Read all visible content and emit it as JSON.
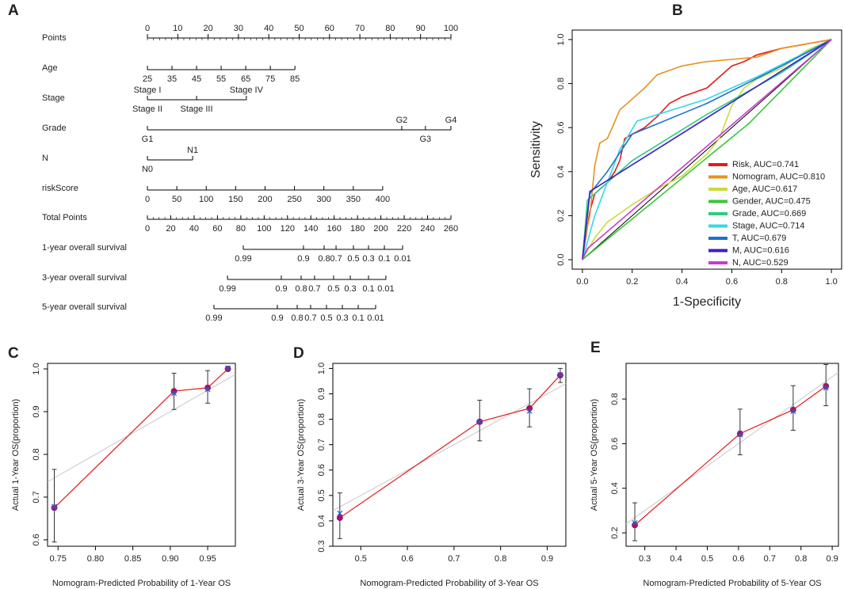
{
  "chart_data": [
    {
      "type": "nomogram",
      "label": "A",
      "points_lim": [
        0,
        100
      ],
      "total_lim": [
        0,
        260
      ],
      "rows": [
        {
          "name": "Points",
          "scale": "points",
          "label_side": "top",
          "minor_step": 2,
          "ticks": [
            0,
            10,
            20,
            30,
            40,
            50,
            60,
            70,
            80,
            90,
            100
          ],
          "positions": [
            0,
            10,
            20,
            30,
            40,
            50,
            60,
            70,
            80,
            90,
            100
          ]
        },
        {
          "name": "Age",
          "scale": "points",
          "ticks": [
            25,
            35,
            45,
            55,
            65,
            75,
            85
          ],
          "positions": [
            0,
            8.1,
            16.2,
            24.3,
            32.4,
            40.5,
            48.6
          ]
        },
        {
          "name": "Stage",
          "scale": "points",
          "ticks": [
            "Stage I",
            "Stage II",
            "Stage III",
            "Stage IV"
          ],
          "positions": [
            0,
            0,
            16.2,
            32.6
          ],
          "sides": [
            "top",
            "bottom",
            "bottom",
            "top"
          ]
        },
        {
          "name": "Grade",
          "scale": "points",
          "ticks": [
            "G1",
            "G2",
            "G3",
            "G4"
          ],
          "positions": [
            0,
            83.8,
            91.6,
            100
          ],
          "sides": [
            "bottom",
            "top",
            "bottom",
            "top"
          ]
        },
        {
          "name": "N",
          "scale": "points",
          "ticks": [
            "N0",
            "N1"
          ],
          "positions": [
            0,
            14.9
          ],
          "sides": [
            "bottom",
            "top"
          ]
        },
        {
          "name": "riskScore",
          "scale": "points",
          "ticks": [
            0,
            50,
            100,
            150,
            200,
            250,
            300,
            350,
            400
          ],
          "positions": [
            0,
            9.69,
            19.38,
            29.07,
            38.76,
            48.45,
            58.14,
            67.83,
            77.52
          ]
        },
        {
          "name": "Total Points",
          "scale": "total",
          "minor_step": 5,
          "ticks": [
            0,
            20,
            40,
            60,
            80,
            100,
            120,
            140,
            160,
            180,
            200,
            220,
            240,
            260
          ],
          "positions": [
            0,
            20,
            40,
            60,
            80,
            100,
            120,
            140,
            160,
            180,
            200,
            220,
            240,
            260
          ]
        },
        {
          "name": "1-year overall survival",
          "scale": "total",
          "ticks": [
            0.99,
            0.9,
            0.8,
            0.7,
            0.5,
            0.3,
            0.1,
            0.01
          ],
          "positions": [
            82.1,
            133.7,
            151.4,
            161.6,
            176.5,
            189.4,
            203,
            218.6
          ]
        },
        {
          "name": "3-year overall survival",
          "scale": "total",
          "ticks": [
            0.99,
            0.9,
            0.8,
            0.7,
            0.5,
            0.3,
            0.1,
            0.01
          ],
          "positions": [
            68.6,
            114.7,
            131.7,
            143.2,
            159.5,
            173.8,
            189.4,
            204.3
          ]
        },
        {
          "name": "5-year overall survival",
          "scale": "total",
          "ticks": [
            0.99,
            0.9,
            0.8,
            0.7,
            0.5,
            0.3,
            0.1,
            0.01
          ],
          "positions": [
            57.0,
            111.3,
            128.3,
            139.8,
            153.4,
            167.0,
            180.6,
            195.5
          ]
        }
      ]
    },
    {
      "type": "roc",
      "label": "B",
      "xlabel": "1-Specificity",
      "ylabel": "Sensitivity",
      "legend": "bottom-right",
      "xlim": [
        -0.041,
        1.041
      ],
      "ylim": [
        -0.043,
        1.043
      ],
      "xticks": [
        {
          "value": 0,
          "label": "0.0"
        },
        0.2,
        0.4,
        0.6,
        0.8,
        {
          "value": 1,
          "label": "1.0"
        }
      ],
      "yticks": [
        {
          "value": 0,
          "label": "0.0"
        },
        0.2,
        0.4,
        0.6,
        0.8,
        {
          "value": 1,
          "label": "1.0"
        }
      ],
      "series": [
        {
          "name": "Risk, AUC=0.741",
          "color": "#e31a1c",
          "x": [
            0,
            0.01,
            0.02,
            0.03,
            0.05,
            0.08,
            0.1,
            0.13,
            0.15,
            0.17,
            0.2,
            0.25,
            0.3,
            0.35,
            0.4,
            0.45,
            0.5,
            0.55,
            0.6,
            0.65,
            0.7,
            0.8,
            0.9,
            1
          ],
          "values": [
            0,
            0.08,
            0.15,
            0.22,
            0.3,
            0.33,
            0.35,
            0.4,
            0.45,
            0.55,
            0.57,
            0.6,
            0.65,
            0.71,
            0.74,
            0.76,
            0.78,
            0.83,
            0.88,
            0.9,
            0.93,
            0.96,
            0.98,
            1
          ]
        },
        {
          "name": "Nomogram, AUC=0.810",
          "color": "#e6921e",
          "x": [
            0,
            0.01,
            0.03,
            0.05,
            0.07,
            0.1,
            0.12,
            0.15,
            0.2,
            0.25,
            0.3,
            0.35,
            0.4,
            0.5,
            0.6,
            0.7,
            0.8,
            0.9,
            1
          ],
          "values": [
            0,
            0.1,
            0.2,
            0.43,
            0.53,
            0.55,
            0.6,
            0.68,
            0.73,
            0.78,
            0.84,
            0.86,
            0.88,
            0.9,
            0.91,
            0.92,
            0.96,
            0.98,
            1
          ]
        },
        {
          "name": "Age, AUC=0.617",
          "color": "#c8dc3c",
          "x": [
            0,
            0.05,
            0.1,
            0.2,
            0.3,
            0.4,
            0.5,
            0.55,
            0.6,
            0.65,
            0.7,
            0.8,
            0.9,
            1
          ],
          "values": [
            0,
            0.1,
            0.17,
            0.25,
            0.32,
            0.38,
            0.48,
            0.55,
            0.7,
            0.78,
            0.82,
            0.87,
            0.95,
            1
          ]
        },
        {
          "name": "Gender, AUC=0.475",
          "color": "#38c838",
          "x": [
            0,
            0.67,
            1
          ],
          "values": [
            0,
            0.62,
            1
          ]
        },
        {
          "name": "Grade, AUC=0.669",
          "color": "#2ecc80",
          "x": [
            0,
            0.02,
            0.2,
            0.5,
            0.8,
            1
          ],
          "values": [
            0,
            0.27,
            0.45,
            0.66,
            0.85,
            1
          ]
        },
        {
          "name": "Stage, AUC=0.714",
          "color": "#36d7e8",
          "x": [
            0,
            0.05,
            0.1,
            0.15,
            0.22,
            0.5,
            0.7,
            1
          ],
          "values": [
            0,
            0.2,
            0.35,
            0.5,
            0.63,
            0.73,
            0.83,
            1
          ]
        },
        {
          "name": "T, AUC=0.679",
          "color": "#1c6fd6",
          "x": [
            0,
            0.03,
            0.1,
            0.2,
            0.5,
            0.8,
            1
          ],
          "values": [
            0,
            0.3,
            0.4,
            0.57,
            0.71,
            0.88,
            1
          ]
        },
        {
          "name": "M, AUC=0.616",
          "color": "#3b1fc8",
          "x": [
            0,
            0.03,
            1
          ],
          "values": [
            0,
            0.31,
            1
          ]
        },
        {
          "name": "N, AUC=0.529",
          "color": "#c83cd0",
          "x": [
            0,
            0.02,
            1
          ],
          "values": [
            0,
            0.05,
            1
          ]
        }
      ]
    },
    {
      "type": "calibration",
      "label": "C",
      "xlabel": "Nomogram-Predicted Probability of 1-Year OS",
      "ylabel": "Actual 1-Year OS(proportion)",
      "xlim": [
        0.736,
        0.987
      ],
      "ylim": [
        0.585,
        1.013
      ],
      "xticks": [
        0.75,
        {
          "value": 0.8,
          "label": "0.80"
        },
        0.85,
        {
          "value": 0.9,
          "label": "0.90"
        },
        0.95
      ],
      "yticks": [
        0.6,
        0.7,
        0.8,
        0.9,
        {
          "value": 1,
          "label": "1.0"
        }
      ],
      "x": [
        0.745,
        0.905,
        0.95,
        0.977
      ],
      "values": [
        0.675,
        0.948,
        0.956,
        1.0
      ],
      "lower": [
        0.595,
        0.905,
        0.92,
        0.995
      ],
      "upper": [
        0.765,
        0.99,
        0.996,
        1.006
      ],
      "corrected": [
        0.678,
        0.943,
        0.952,
        1.002
      ]
    },
    {
      "type": "calibration",
      "label": "D",
      "xlabel": "Nomogram-Predicted Probability of 3-Year OS",
      "ylabel": "Actual 3-Year OS(proportion)",
      "xlim": [
        0.44,
        0.94
      ],
      "ylim": [
        0.3,
        1.02
      ],
      "xticks": [
        0.5,
        0.6,
        0.7,
        0.8,
        0.9
      ],
      "yticks": [
        0.3,
        0.4,
        0.5,
        0.6,
        0.7,
        0.8,
        0.9,
        {
          "value": 1,
          "label": "1.0"
        }
      ],
      "x": [
        0.455,
        0.755,
        0.862,
        0.928
      ],
      "values": [
        0.412,
        0.79,
        0.843,
        0.973
      ],
      "lower": [
        0.33,
        0.715,
        0.77,
        0.945
      ],
      "upper": [
        0.51,
        0.875,
        0.92,
        1.0
      ],
      "corrected": [
        0.43,
        0.79,
        0.832,
        0.975
      ]
    },
    {
      "type": "calibration",
      "label": "E",
      "xlabel": "Nomogram-Predicted Probability of 5-Year OS",
      "ylabel": "Actual 5-Year OS(proportion)",
      "xlim": [
        0.24,
        0.92
      ],
      "ylim": [
        0.14,
        0.96
      ],
      "xticks": [
        0.3,
        0.4,
        0.5,
        0.6,
        0.7,
        0.8,
        0.9
      ],
      "yticks": [
        0.2,
        0.4,
        0.6,
        0.8
      ],
      "x": [
        0.268,
        0.605,
        0.775,
        0.88
      ],
      "values": [
        0.235,
        0.645,
        0.752,
        0.858
      ],
      "lower": [
        0.165,
        0.55,
        0.66,
        0.77
      ],
      "upper": [
        0.335,
        0.755,
        0.86,
        0.955
      ],
      "corrected": [
        0.245,
        0.64,
        0.745,
        0.85
      ]
    }
  ]
}
